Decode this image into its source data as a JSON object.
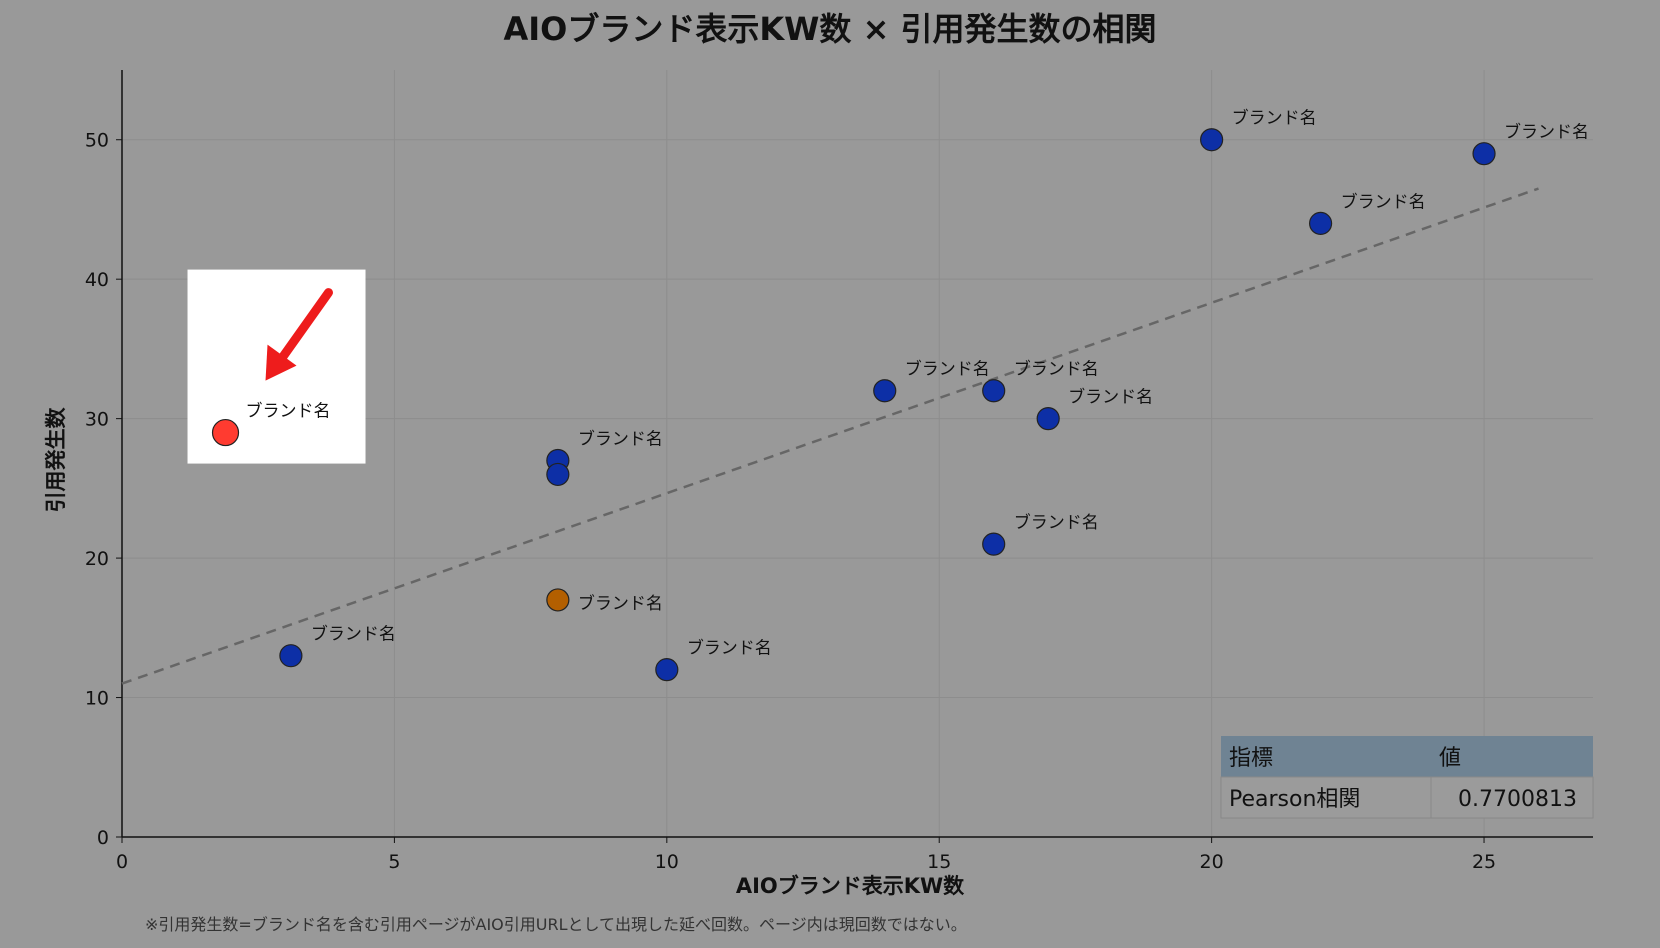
{
  "chart_data": {
    "type": "scatter",
    "title": "AIOブランド表示KW数 × 引用発生数の相関",
    "xlabel": "AIOブランド表示KW数",
    "ylabel": "引用発生数",
    "xlim": [
      0,
      27
    ],
    "ylim": [
      0,
      55
    ],
    "xticks": [
      0,
      5,
      10,
      15,
      20,
      25
    ],
    "yticks": [
      0,
      10,
      20,
      30,
      40,
      50
    ],
    "grid": true,
    "points": [
      {
        "x": 1.9,
        "y": 29,
        "label": "ブランド名",
        "color": "#ff3b30",
        "highlighted": true
      },
      {
        "x": 3.1,
        "y": 13,
        "label": "ブランド名",
        "color": "#0d2fa6"
      },
      {
        "x": 8,
        "y": 27,
        "label": "ブランド名",
        "color": "#0d2fa6"
      },
      {
        "x": 8,
        "y": 26,
        "label": "",
        "color": "#0d2fa6"
      },
      {
        "x": 8,
        "y": 17,
        "label": "ブランド名",
        "color": "#b35f00"
      },
      {
        "x": 10,
        "y": 12,
        "label": "ブランド名",
        "color": "#0d2fa6"
      },
      {
        "x": 14,
        "y": 32,
        "label": "ブランド名",
        "color": "#0d2fa6"
      },
      {
        "x": 16,
        "y": 32,
        "label": "ブランド名",
        "color": "#0d2fa6"
      },
      {
        "x": 17,
        "y": 30,
        "label": "ブランド名",
        "color": "#0d2fa6"
      },
      {
        "x": 16,
        "y": 21,
        "label": "ブランド名",
        "color": "#0d2fa6"
      },
      {
        "x": 20,
        "y": 50,
        "label": "ブランド名",
        "color": "#0d2fa6"
      },
      {
        "x": 22,
        "y": 44,
        "label": "ブランド名",
        "color": "#0d2fa6"
      },
      {
        "x": 25,
        "y": 49,
        "label": "ブランド名",
        "color": "#0d2fa6"
      }
    ],
    "trendline": {
      "x": [
        0,
        26
      ],
      "y": [
        11,
        46.5
      ],
      "style": "dashed"
    },
    "stats_table": {
      "headers": [
        "指標",
        "値"
      ],
      "rows": [
        [
          "Pearson相関",
          "0.7700813"
        ]
      ]
    }
  },
  "footnote": "※引用発生数=ブランド名を含む引用ページがAIO引用URLとして出現した延べ回数。ページ内は現回数ではない。"
}
